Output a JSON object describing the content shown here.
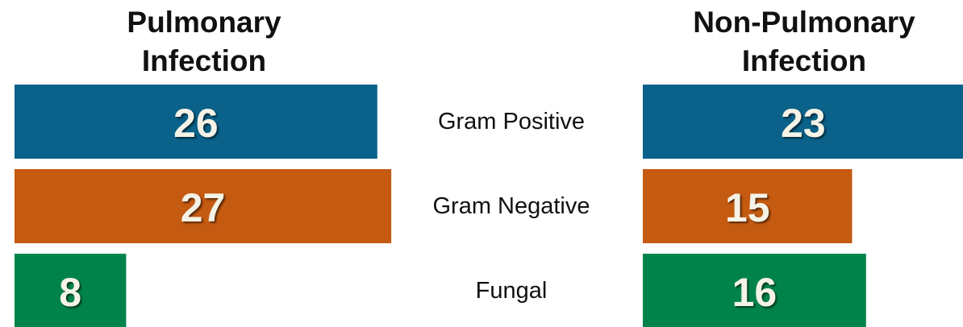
{
  "chart_data": {
    "type": "bar",
    "categories": [
      "Gram Positive",
      "Gram Negative",
      "Fungal"
    ],
    "colors": [
      "#0a6189",
      "#c55a11",
      "#00834a"
    ],
    "series": [
      {
        "name": "Pulmonary Infection",
        "values": [
          26,
          27,
          8
        ]
      },
      {
        "name": "Non-Pulmonary Infection",
        "values": [
          23,
          15,
          16
        ]
      }
    ]
  }
}
